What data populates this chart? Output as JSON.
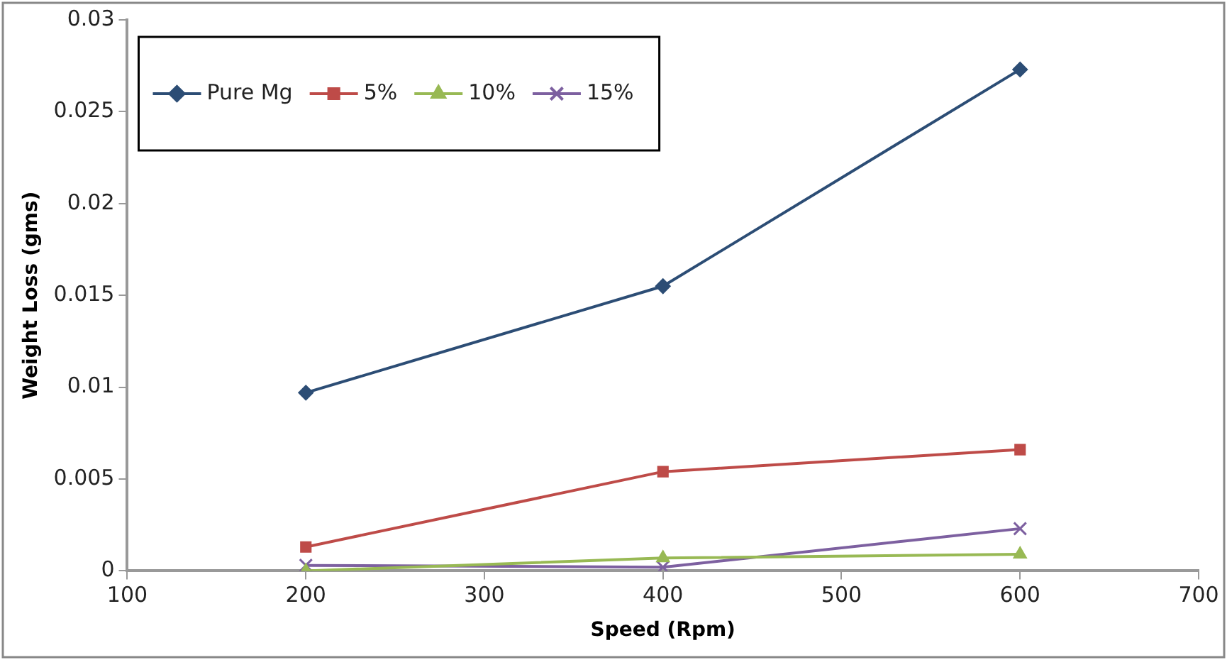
{
  "chart_data": {
    "type": "line",
    "xlabel": "Speed (Rpm)",
    "ylabel": "Weight Loss (gms)",
    "x": [
      200,
      400,
      600
    ],
    "series": [
      {
        "name": "Pure Mg",
        "color": "#2c4d75",
        "marker": "diamond",
        "values": [
          0.0097,
          0.0155,
          0.0273
        ]
      },
      {
        "name": "5%",
        "color": "#be4b48",
        "marker": "square",
        "values": [
          0.0013,
          0.0054,
          0.0066
        ]
      },
      {
        "name": "10%",
        "color": "#98b954",
        "marker": "triangle",
        "values": [
          0,
          0.0007,
          0.0009
        ]
      },
      {
        "name": "15%",
        "color": "#7d60a0",
        "marker": "cross",
        "values": [
          0.0003,
          0.0002,
          0.0023
        ]
      }
    ],
    "xlim": [
      100,
      700
    ],
    "xticks": [
      100,
      200,
      300,
      400,
      500,
      600,
      700
    ],
    "ylim": [
      0,
      0.03
    ],
    "yticks": [
      0,
      0.005,
      0.01,
      0.015,
      0.02,
      0.025,
      0.03
    ],
    "grid": false,
    "legend": "top left",
    "line_style": "solid"
  }
}
